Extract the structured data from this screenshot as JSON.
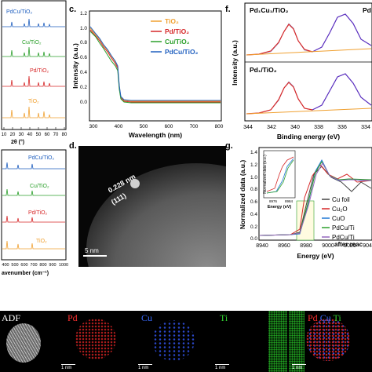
{
  "panel_a": {
    "labels": [
      "PdCu/TiO₂",
      "Cu/TiO₂",
      "Pd/TiO₂",
      "TiO₂"
    ],
    "label_colors": [
      "#1f5fbf",
      "#2ca02c",
      "#d62728",
      "#f0a030"
    ],
    "xlabel": "2θ (°)",
    "xticks": [
      "10",
      "20",
      "30",
      "40",
      "50",
      "60",
      "70",
      "80"
    ]
  },
  "panel_b": {
    "labels": [
      "PdCu/TiO₂",
      "Cu/TiO₂",
      "Pd/TiO₂",
      "TiO₂"
    ],
    "label_colors": [
      "#1f5fbf",
      "#2ca02c",
      "#d62728",
      "#f0a030"
    ],
    "xlabel": "avenumber (cm⁻¹)",
    "xticks": [
      "400",
      "500",
      "600",
      "700",
      "800",
      "900",
      "1000"
    ]
  },
  "panel_c": {
    "letter": "c.",
    "ylabel": "Intensity (a.u.)",
    "xlabel": "Wavelength (nm)",
    "yticks": [
      "0.0",
      "0.2",
      "0.4",
      "0.6",
      "0.8",
      "1.0",
      "1.2"
    ],
    "xticks": [
      "300",
      "400",
      "500",
      "600",
      "700",
      "800"
    ],
    "legend": [
      {
        "label": "TiO₂",
        "color": "#f0a030"
      },
      {
        "label": "Pd/TiO₂",
        "color": "#d62728"
      },
      {
        "label": "Cu/TiO₂",
        "color": "#2ca02c"
      },
      {
        "label": "PdCu/TiO₂",
        "color": "#1f5fbf"
      }
    ]
  },
  "panel_d": {
    "letter": "d.",
    "spacing": "0.228 nm",
    "plane": "(111)",
    "scale": "5 nm"
  },
  "panel_f": {
    "letter": "f.",
    "ylabel": "Intensity (a.u.)",
    "xlabel": "Binding energy (eV)",
    "xticks": [
      "344",
      "342",
      "340",
      "338",
      "336",
      "334"
    ],
    "top_label": "Pd₁Cu₁/TiO₂",
    "bottom_label": "Pd₁/TiO₂",
    "corner_label": "Pd"
  },
  "panel_g": {
    "letter": "g.",
    "ylabel": "Normalized data (a.u.)",
    "xlabel": "Energy (eV)",
    "yticks": [
      "0.0",
      "0.2",
      "0.4",
      "0.6",
      "0.8",
      "1.0",
      "1.2",
      "1.4"
    ],
    "xticks": [
      "8940",
      "8960",
      "8980",
      "9000",
      "9020",
      "9040"
    ],
    "inset": {
      "ylabel": "Normalized data (a.u.)",
      "xlabel": "Energy (eV)",
      "xticks": [
        "8976",
        "8984"
      ]
    },
    "legend": [
      {
        "label": "Cu foil",
        "color": "#444444"
      },
      {
        "label": "Cu₂O",
        "color": "#d62728"
      },
      {
        "label": "CuO",
        "color": "#1f77d4"
      },
      {
        "label": "PdCu/Ti",
        "color": "#2ca02c"
      },
      {
        "label": "PdCu/Ti",
        "color": "#9467bd"
      }
    ],
    "after_text": "after reac"
  },
  "eds": {
    "titles": [
      {
        "text": "ADF",
        "color": "#ffffff"
      },
      {
        "text": "Pd",
        "color": "#ff3030"
      },
      {
        "text": "Cu",
        "color": "#3a6bff"
      },
      {
        "text": "Ti",
        "color": "#30d030"
      }
    ],
    "overlay": [
      {
        "text": "Pd",
        "color": "#ff3030"
      },
      {
        "text": "Cu",
        "color": "#3a6bff"
      },
      {
        "text": "Ti",
        "color": "#30d030"
      }
    ],
    "scale": "1 nm"
  }
}
